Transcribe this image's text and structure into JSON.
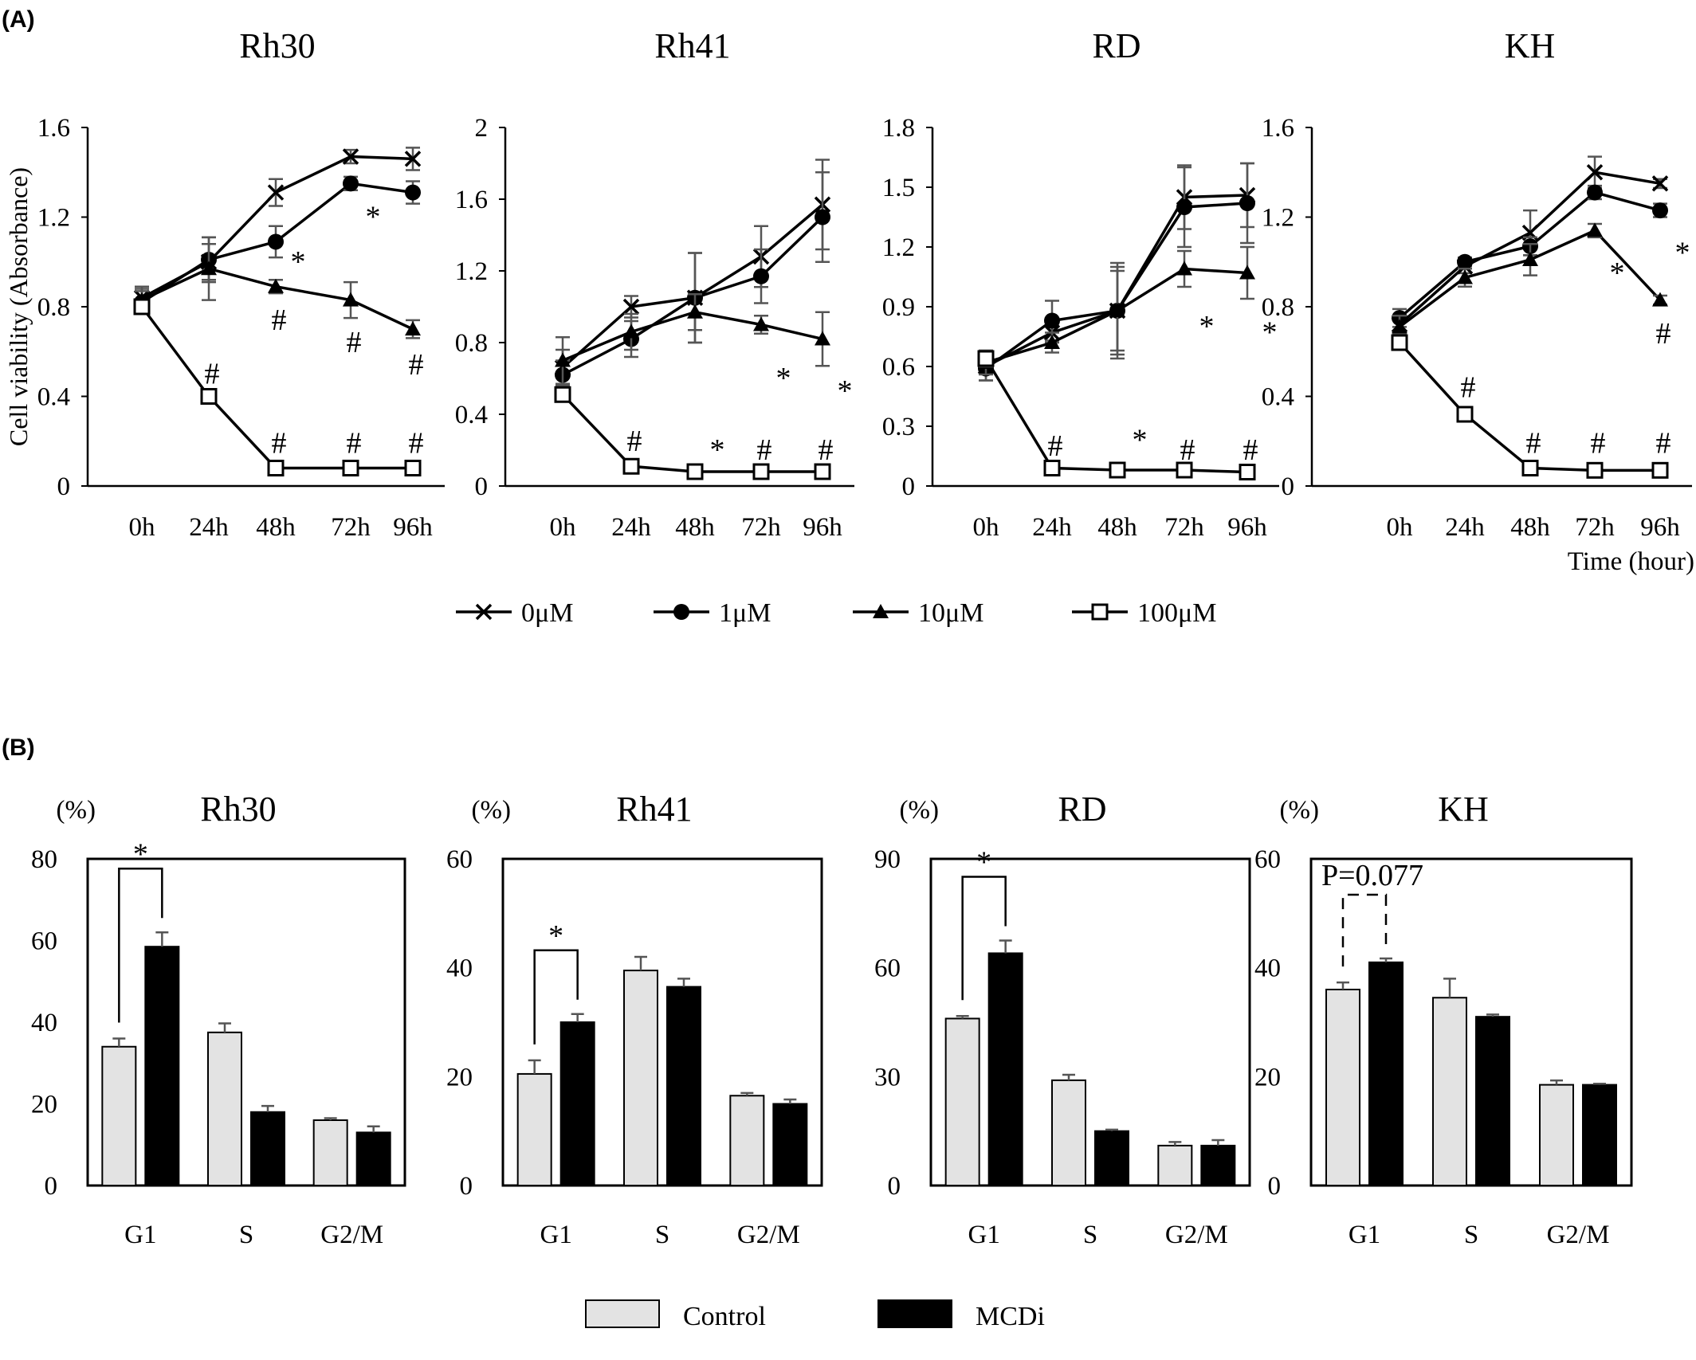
{
  "panel_labels": {
    "a": "(A)",
    "b": "(B)"
  },
  "colors": {
    "control": "#e3e3e3",
    "mcdi": "#000000",
    "error_bar": "#555555",
    "line": "#000000"
  },
  "panel_a": {
    "ylabel": "Cell viability (Absorbance)",
    "xlabel": "Time (hour)",
    "legend": [
      {
        "label": "0μM",
        "marker": "x"
      },
      {
        "label": "1μM",
        "marker": "circle"
      },
      {
        "label": "10μM",
        "marker": "triangle"
      },
      {
        "label": "100μM",
        "marker": "open-square"
      }
    ]
  },
  "panel_b": {
    "ylabel": "(%)",
    "legend": [
      {
        "label": "Control",
        "color": "#e3e3e3"
      },
      {
        "label": "MCDi",
        "color": "#000000"
      }
    ]
  },
  "chart_data": [
    {
      "type": "line",
      "title": "Rh30",
      "x": [
        "0h",
        "24h",
        "48h",
        "72h",
        "96h"
      ],
      "ylim": [
        0,
        1.6
      ],
      "yticks": [
        0,
        0.4,
        0.8,
        1.2,
        1.6
      ],
      "ytick_labels": [
        "0",
        "0.4",
        "0.8",
        "1.2",
        "1.6"
      ],
      "series": [
        {
          "name": "0μM",
          "marker": "x",
          "values": [
            0.84,
            1.0,
            1.31,
            1.47,
            1.46
          ],
          "errors": [
            0.05,
            0.08,
            0.06,
            0.03,
            0.05
          ]
        },
        {
          "name": "1μM",
          "marker": "circle",
          "values": [
            0.82,
            1.01,
            1.09,
            1.35,
            1.31
          ],
          "errors": [
            0.05,
            0.1,
            0.07,
            0.03,
            0.05
          ]
        },
        {
          "name": "10μM",
          "marker": "triangle",
          "values": [
            0.83,
            0.97,
            0.89,
            0.83,
            0.7
          ],
          "errors": [
            0.05,
            0.14,
            0.03,
            0.08,
            0.04
          ]
        },
        {
          "name": "100μM",
          "marker": "open-square",
          "values": [
            0.8,
            0.4,
            0.08,
            0.08,
            0.08
          ],
          "errors": [
            0.03,
            0.02,
            0.01,
            0.01,
            0.01
          ]
        }
      ],
      "annotations": [
        {
          "text": "*",
          "x": 48,
          "y": 1.0
        },
        {
          "text": "*",
          "x": 72,
          "y": 1.2
        },
        {
          "text": "#",
          "x": 48,
          "y": 0.74
        },
        {
          "text": "#",
          "x": 72,
          "y": 0.64
        },
        {
          "text": "#",
          "x": 96,
          "y": 0.54
        },
        {
          "text": "#",
          "x": 24,
          "y": 0.5
        },
        {
          "text": "#",
          "x": 48,
          "y": 0.19
        },
        {
          "text": "#",
          "x": 72,
          "y": 0.19
        },
        {
          "text": "#",
          "x": 96,
          "y": 0.19
        }
      ]
    },
    {
      "type": "line",
      "title": "Rh41",
      "x": [
        "0h",
        "24h",
        "48h",
        "72h",
        "96h"
      ],
      "ylim": [
        0,
        2
      ],
      "yticks": [
        0,
        0.4,
        0.8,
        1.2,
        1.6,
        2
      ],
      "ytick_labels": [
        "0",
        "0.4",
        "0.8",
        "1.2",
        "1.6",
        "2"
      ],
      "series": [
        {
          "name": "0μM",
          "marker": "x",
          "values": [
            0.66,
            1.0,
            1.05,
            1.28,
            1.57
          ],
          "errors": [
            0.1,
            0.06,
            0.25,
            0.17,
            0.25
          ]
        },
        {
          "name": "1μM",
          "marker": "circle",
          "values": [
            0.62,
            0.82,
            1.05,
            1.17,
            1.5
          ],
          "errors": [
            0.08,
            0.1,
            0.25,
            0.15,
            0.25
          ]
        },
        {
          "name": "10μM",
          "marker": "triangle",
          "values": [
            0.7,
            0.86,
            0.97,
            0.9,
            0.82
          ],
          "errors": [
            0.13,
            0.1,
            0.1,
            0.05,
            0.15
          ]
        },
        {
          "name": "100μM",
          "marker": "open-square",
          "values": [
            0.51,
            0.11,
            0.08,
            0.08,
            0.08
          ],
          "errors": [
            0.03,
            0.02,
            0.01,
            0.01,
            0.01
          ]
        }
      ],
      "annotations": [
        {
          "text": "*",
          "x": 72,
          "y": 0.6
        },
        {
          "text": "*",
          "x": 96,
          "y": 0.53
        },
        {
          "text": "#",
          "x": 24,
          "y": 0.25
        },
        {
          "text": "*",
          "x": 48,
          "y": 0.2
        },
        {
          "text": "#",
          "x": 72,
          "y": 0.2
        },
        {
          "text": "#",
          "x": 96,
          "y": 0.2
        }
      ]
    },
    {
      "type": "line",
      "title": "RD",
      "x": [
        "0h",
        "24h",
        "48h",
        "72h",
        "96h"
      ],
      "ylim": [
        0,
        1.8
      ],
      "yticks": [
        0,
        0.3,
        0.6,
        0.9,
        1.2,
        1.5,
        1.8
      ],
      "ytick_labels": [
        "0",
        "0.3",
        "0.6",
        "0.9",
        "1.2",
        "1.5",
        "1.8"
      ],
      "series": [
        {
          "name": "0μM",
          "marker": "x",
          "values": [
            0.6,
            0.77,
            0.88,
            1.45,
            1.46
          ],
          "errors": [
            0.07,
            0.05,
            0.22,
            0.16,
            0.16
          ]
        },
        {
          "name": "1μM",
          "marker": "circle",
          "values": [
            0.59,
            0.83,
            0.88,
            1.4,
            1.42
          ],
          "errors": [
            0.06,
            0.1,
            0.24,
            0.2,
            0.2
          ]
        },
        {
          "name": "10μM",
          "marker": "triangle",
          "values": [
            0.62,
            0.72,
            0.88,
            1.09,
            1.07
          ],
          "errors": [
            0.06,
            0.05,
            0.2,
            0.09,
            0.13
          ]
        },
        {
          "name": "100μM",
          "marker": "open-square",
          "values": [
            0.64,
            0.09,
            0.08,
            0.08,
            0.07
          ],
          "errors": [
            0.04,
            0.02,
            0.01,
            0.01,
            0.01
          ]
        }
      ],
      "annotations": [
        {
          "text": "*",
          "x": 72,
          "y": 0.8
        },
        {
          "text": "*",
          "x": 96,
          "y": 0.77
        },
        {
          "text": "#",
          "x": 24,
          "y": 0.2
        },
        {
          "text": "*",
          "x": 48,
          "y": 0.23
        },
        {
          "text": "#",
          "x": 72,
          "y": 0.18
        },
        {
          "text": "#",
          "x": 96,
          "y": 0.18
        }
      ]
    },
    {
      "type": "line",
      "title": "KH",
      "x": [
        "0h",
        "24h",
        "48h",
        "72h",
        "96h"
      ],
      "ylim": [
        0,
        1.6
      ],
      "yticks": [
        0,
        0.4,
        0.8,
        1.2,
        1.6
      ],
      "ytick_labels": [
        "0",
        "0.4",
        "0.8",
        "1.2",
        "1.6"
      ],
      "series": [
        {
          "name": "0μM",
          "marker": "x",
          "values": [
            0.72,
            0.98,
            1.13,
            1.4,
            1.35
          ],
          "errors": [
            0.04,
            0.03,
            0.1,
            0.07,
            0.02
          ]
        },
        {
          "name": "1μM",
          "marker": "circle",
          "values": [
            0.75,
            1.0,
            1.07,
            1.31,
            1.23
          ],
          "errors": [
            0.04,
            0.02,
            0.04,
            0.03,
            0.03
          ]
        },
        {
          "name": "10μM",
          "marker": "triangle",
          "values": [
            0.71,
            0.93,
            1.01,
            1.14,
            0.83
          ],
          "errors": [
            0.05,
            0.04,
            0.07,
            0.03,
            0.02
          ]
        },
        {
          "name": "100μM",
          "marker": "open-square",
          "values": [
            0.64,
            0.32,
            0.08,
            0.07,
            0.07
          ],
          "errors": [
            0.03,
            0.02,
            0.01,
            0.01,
            0.01
          ]
        }
      ],
      "annotations": [
        {
          "text": "*",
          "x": 72,
          "y": 0.95
        },
        {
          "text": "*",
          "x": 96,
          "y": 1.04
        },
        {
          "text": "#",
          "x": 96,
          "y": 0.68
        },
        {
          "text": "#",
          "x": 24,
          "y": 0.44
        },
        {
          "text": "#",
          "x": 48,
          "y": 0.19
        },
        {
          "text": "#",
          "x": 72,
          "y": 0.19
        },
        {
          "text": "#",
          "x": 96,
          "y": 0.19
        }
      ]
    },
    {
      "type": "bar",
      "title": "Rh30",
      "categories": [
        "G1",
        "S",
        "G2/M"
      ],
      "ylim": [
        0,
        80
      ],
      "yticks": [
        0,
        20,
        40,
        60,
        80
      ],
      "series": [
        {
          "name": "Control",
          "values": [
            34,
            37.5,
            16
          ],
          "errors": [
            2,
            2.2,
            0.5
          ]
        },
        {
          "name": "MCDi",
          "values": [
            58.5,
            18,
            13
          ],
          "errors": [
            3.5,
            1.5,
            1.5
          ]
        }
      ],
      "significance": [
        {
          "category": "G1",
          "label": "*",
          "style": "solid"
        }
      ]
    },
    {
      "type": "bar",
      "title": "Rh41",
      "categories": [
        "G1",
        "S",
        "G2/M"
      ],
      "ylim": [
        0,
        60
      ],
      "yticks": [
        0,
        20,
        40,
        60
      ],
      "series": [
        {
          "name": "Control",
          "values": [
            20.5,
            39.5,
            16.5
          ],
          "errors": [
            2.5,
            2.5,
            0.5
          ]
        },
        {
          "name": "MCDi",
          "values": [
            30,
            36.5,
            15
          ],
          "errors": [
            1.5,
            1.5,
            0.8
          ]
        }
      ],
      "significance": [
        {
          "category": "G1",
          "label": "*",
          "style": "solid"
        }
      ]
    },
    {
      "type": "bar",
      "title": "RD",
      "categories": [
        "G1",
        "S",
        "G2/M"
      ],
      "ylim": [
        0,
        90
      ],
      "yticks": [
        0,
        30,
        60,
        90
      ],
      "series": [
        {
          "name": "Control",
          "values": [
            46,
            29,
            11
          ],
          "errors": [
            0.7,
            1.5,
            1
          ]
        },
        {
          "name": "MCDi",
          "values": [
            64,
            15,
            11
          ],
          "errors": [
            3.5,
            0.4,
            1.5
          ]
        }
      ],
      "significance": [
        {
          "category": "G1",
          "label": "*",
          "style": "solid"
        }
      ]
    },
    {
      "type": "bar",
      "title": "KH",
      "categories": [
        "G1",
        "S",
        "G2/M"
      ],
      "ylim": [
        0,
        60
      ],
      "yticks": [
        0,
        20,
        40,
        60
      ],
      "series": [
        {
          "name": "Control",
          "values": [
            36,
            34.5,
            18.5
          ],
          "errors": [
            1.3,
            3.5,
            0.8
          ]
        },
        {
          "name": "MCDi",
          "values": [
            41,
            31,
            18.5
          ],
          "errors": [
            0.7,
            0.4,
            0.2
          ]
        }
      ],
      "significance": [
        {
          "category": "G1",
          "label": "P=0.077",
          "style": "dashed"
        }
      ]
    }
  ]
}
